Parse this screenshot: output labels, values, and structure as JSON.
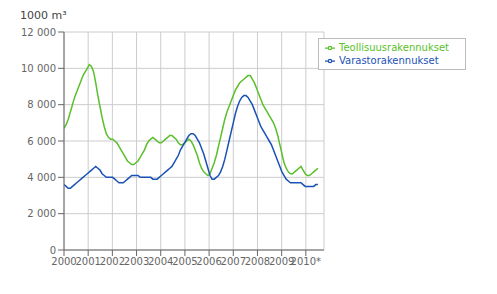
{
  "chart_data": {
    "type": "line",
    "y_label": "1000 m³",
    "xlim": [
      2000,
      2010.75
    ],
    "xticks": [
      2000,
      2001,
      2002,
      2003,
      2004,
      2005,
      2006,
      2007,
      2008,
      2009,
      {
        "value": 2010,
        "label": "2010*"
      }
    ],
    "ylim": [
      0,
      12000
    ],
    "yticks": [
      0,
      {
        "value": 2000,
        "label": "2 000"
      },
      {
        "value": 4000,
        "label": "4 000"
      },
      {
        "value": 6000,
        "label": "6 000"
      },
      {
        "value": 8000,
        "label": "8 000"
      },
      {
        "value": 10000,
        "label": "10 000"
      },
      {
        "value": 12000,
        "label": "12 000"
      }
    ],
    "grid": true,
    "legend": "upper right",
    "x": [
      2000,
      2000.0875,
      2000.175,
      2000.2625,
      2000.35,
      2000.4375,
      2000.525,
      2000.6125,
      2000.7,
      2000.7875,
      2000.875,
      2000.9625,
      2001.05,
      2001.1375,
      2001.225,
      2001.3125,
      2001.4,
      2001.4875,
      2001.575,
      2001.6625,
      2001.75,
      2001.8375,
      2001.925,
      2002.0125,
      2002.1,
      2002.1875,
      2002.275,
      2002.3625,
      2002.45,
      2002.5375,
      2002.625,
      2002.7125,
      2002.8,
      2002.8875,
      2002.975,
      2003.0625,
      2003.15,
      2003.2375,
      2003.325,
      2003.4125,
      2003.5,
      2003.5875,
      2003.675,
      2003.7625,
      2003.85,
      2003.9375,
      2004.025,
      2004.1125,
      2004.2,
      2004.2875,
      2004.375,
      2004.4625,
      2004.55,
      2004.6375,
      2004.725,
      2004.8125,
      2004.9,
      2004.9875,
      2005.075,
      2005.1625,
      2005.25,
      2005.3375,
      2005.425,
      2005.5125,
      2005.6,
      2005.6875,
      2005.775,
      2005.8625,
      2005.95,
      2006.0375,
      2006.125,
      2006.2125,
      2006.3,
      2006.3875,
      2006.475,
      2006.5625,
      2006.65,
      2006.7375,
      2006.825,
      2006.9125,
      2007,
      2007.0875,
      2007.175,
      2007.2625,
      2007.35,
      2007.4375,
      2007.525,
      2007.6125,
      2007.7,
      2007.7875,
      2007.875,
      2007.9625,
      2008.05,
      2008.1375,
      2008.225,
      2008.3125,
      2008.4,
      2008.4875,
      2008.575,
      2008.6625,
      2008.75,
      2008.8375,
      2008.925,
      2009.0125,
      2009.1,
      2009.1875,
      2009.275,
      2009.3625,
      2009.45,
      2009.5375,
      2009.625,
      2009.7125,
      2009.8,
      2009.8875,
      2009.975,
      2010.0625,
      2010.15,
      2010.2375,
      2010.325,
      2010.4125,
      2010.5
    ],
    "series": [
      {
        "name": "Teollisuusrakennukset",
        "color": "#5abf2a",
        "values": [
          6700,
          6900,
          7200,
          7600,
          8000,
          8400,
          8700,
          9000,
          9300,
          9600,
          9800,
          10000,
          10200,
          10100,
          9800,
          9200,
          8500,
          7900,
          7300,
          6800,
          6400,
          6200,
          6100,
          6100,
          6000,
          5900,
          5700,
          5500,
          5300,
          5100,
          4900,
          4800,
          4700,
          4700,
          4800,
          4900,
          5100,
          5300,
          5500,
          5800,
          6000,
          6100,
          6200,
          6100,
          6000,
          5900,
          5900,
          6000,
          6100,
          6200,
          6300,
          6300,
          6200,
          6100,
          5900,
          5800,
          5800,
          5900,
          6000,
          6100,
          6000,
          5800,
          5500,
          5200,
          4800,
          4500,
          4300,
          4200,
          4100,
          4200,
          4500,
          4800,
          5200,
          5700,
          6200,
          6700,
          7200,
          7600,
          7900,
          8200,
          8500,
          8800,
          9000,
          9200,
          9300,
          9400,
          9500,
          9600,
          9600,
          9400,
          9200,
          8900,
          8600,
          8300,
          8000,
          7800,
          7600,
          7400,
          7200,
          7000,
          6700,
          6300,
          5800,
          5300,
          4800,
          4500,
          4300,
          4200,
          4200,
          4300,
          4400,
          4500,
          4600,
          4400,
          4200,
          4100,
          4100,
          4200,
          4300,
          4400,
          4500
        ]
      },
      {
        "name": "Varastorakennukset",
        "color": "#1a52b5",
        "values": [
          3600,
          3500,
          3400,
          3400,
          3500,
          3600,
          3700,
          3800,
          3900,
          4000,
          4100,
          4200,
          4300,
          4400,
          4500,
          4600,
          4500,
          4400,
          4200,
          4100,
          4000,
          4000,
          4000,
          4000,
          3900,
          3800,
          3700,
          3700,
          3700,
          3800,
          3900,
          4000,
          4100,
          4100,
          4100,
          4100,
          4000,
          4000,
          4000,
          4000,
          4000,
          4000,
          3900,
          3900,
          3900,
          4000,
          4100,
          4200,
          4300,
          4400,
          4500,
          4600,
          4800,
          5000,
          5200,
          5500,
          5700,
          5900,
          6100,
          6300,
          6400,
          6400,
          6300,
          6100,
          5900,
          5600,
          5300,
          4900,
          4500,
          4100,
          3900,
          3900,
          4000,
          4100,
          4300,
          4600,
          5000,
          5500,
          6000,
          6500,
          7000,
          7500,
          7900,
          8200,
          8400,
          8500,
          8500,
          8400,
          8200,
          8000,
          7700,
          7400,
          7100,
          6800,
          6600,
          6400,
          6200,
          6000,
          5800,
          5500,
          5200,
          4900,
          4600,
          4300,
          4100,
          3900,
          3800,
          3700,
          3700,
          3700,
          3700,
          3700,
          3700,
          3600,
          3500,
          3500,
          3500,
          3500,
          3500,
          3600,
          3600
        ]
      }
    ]
  }
}
